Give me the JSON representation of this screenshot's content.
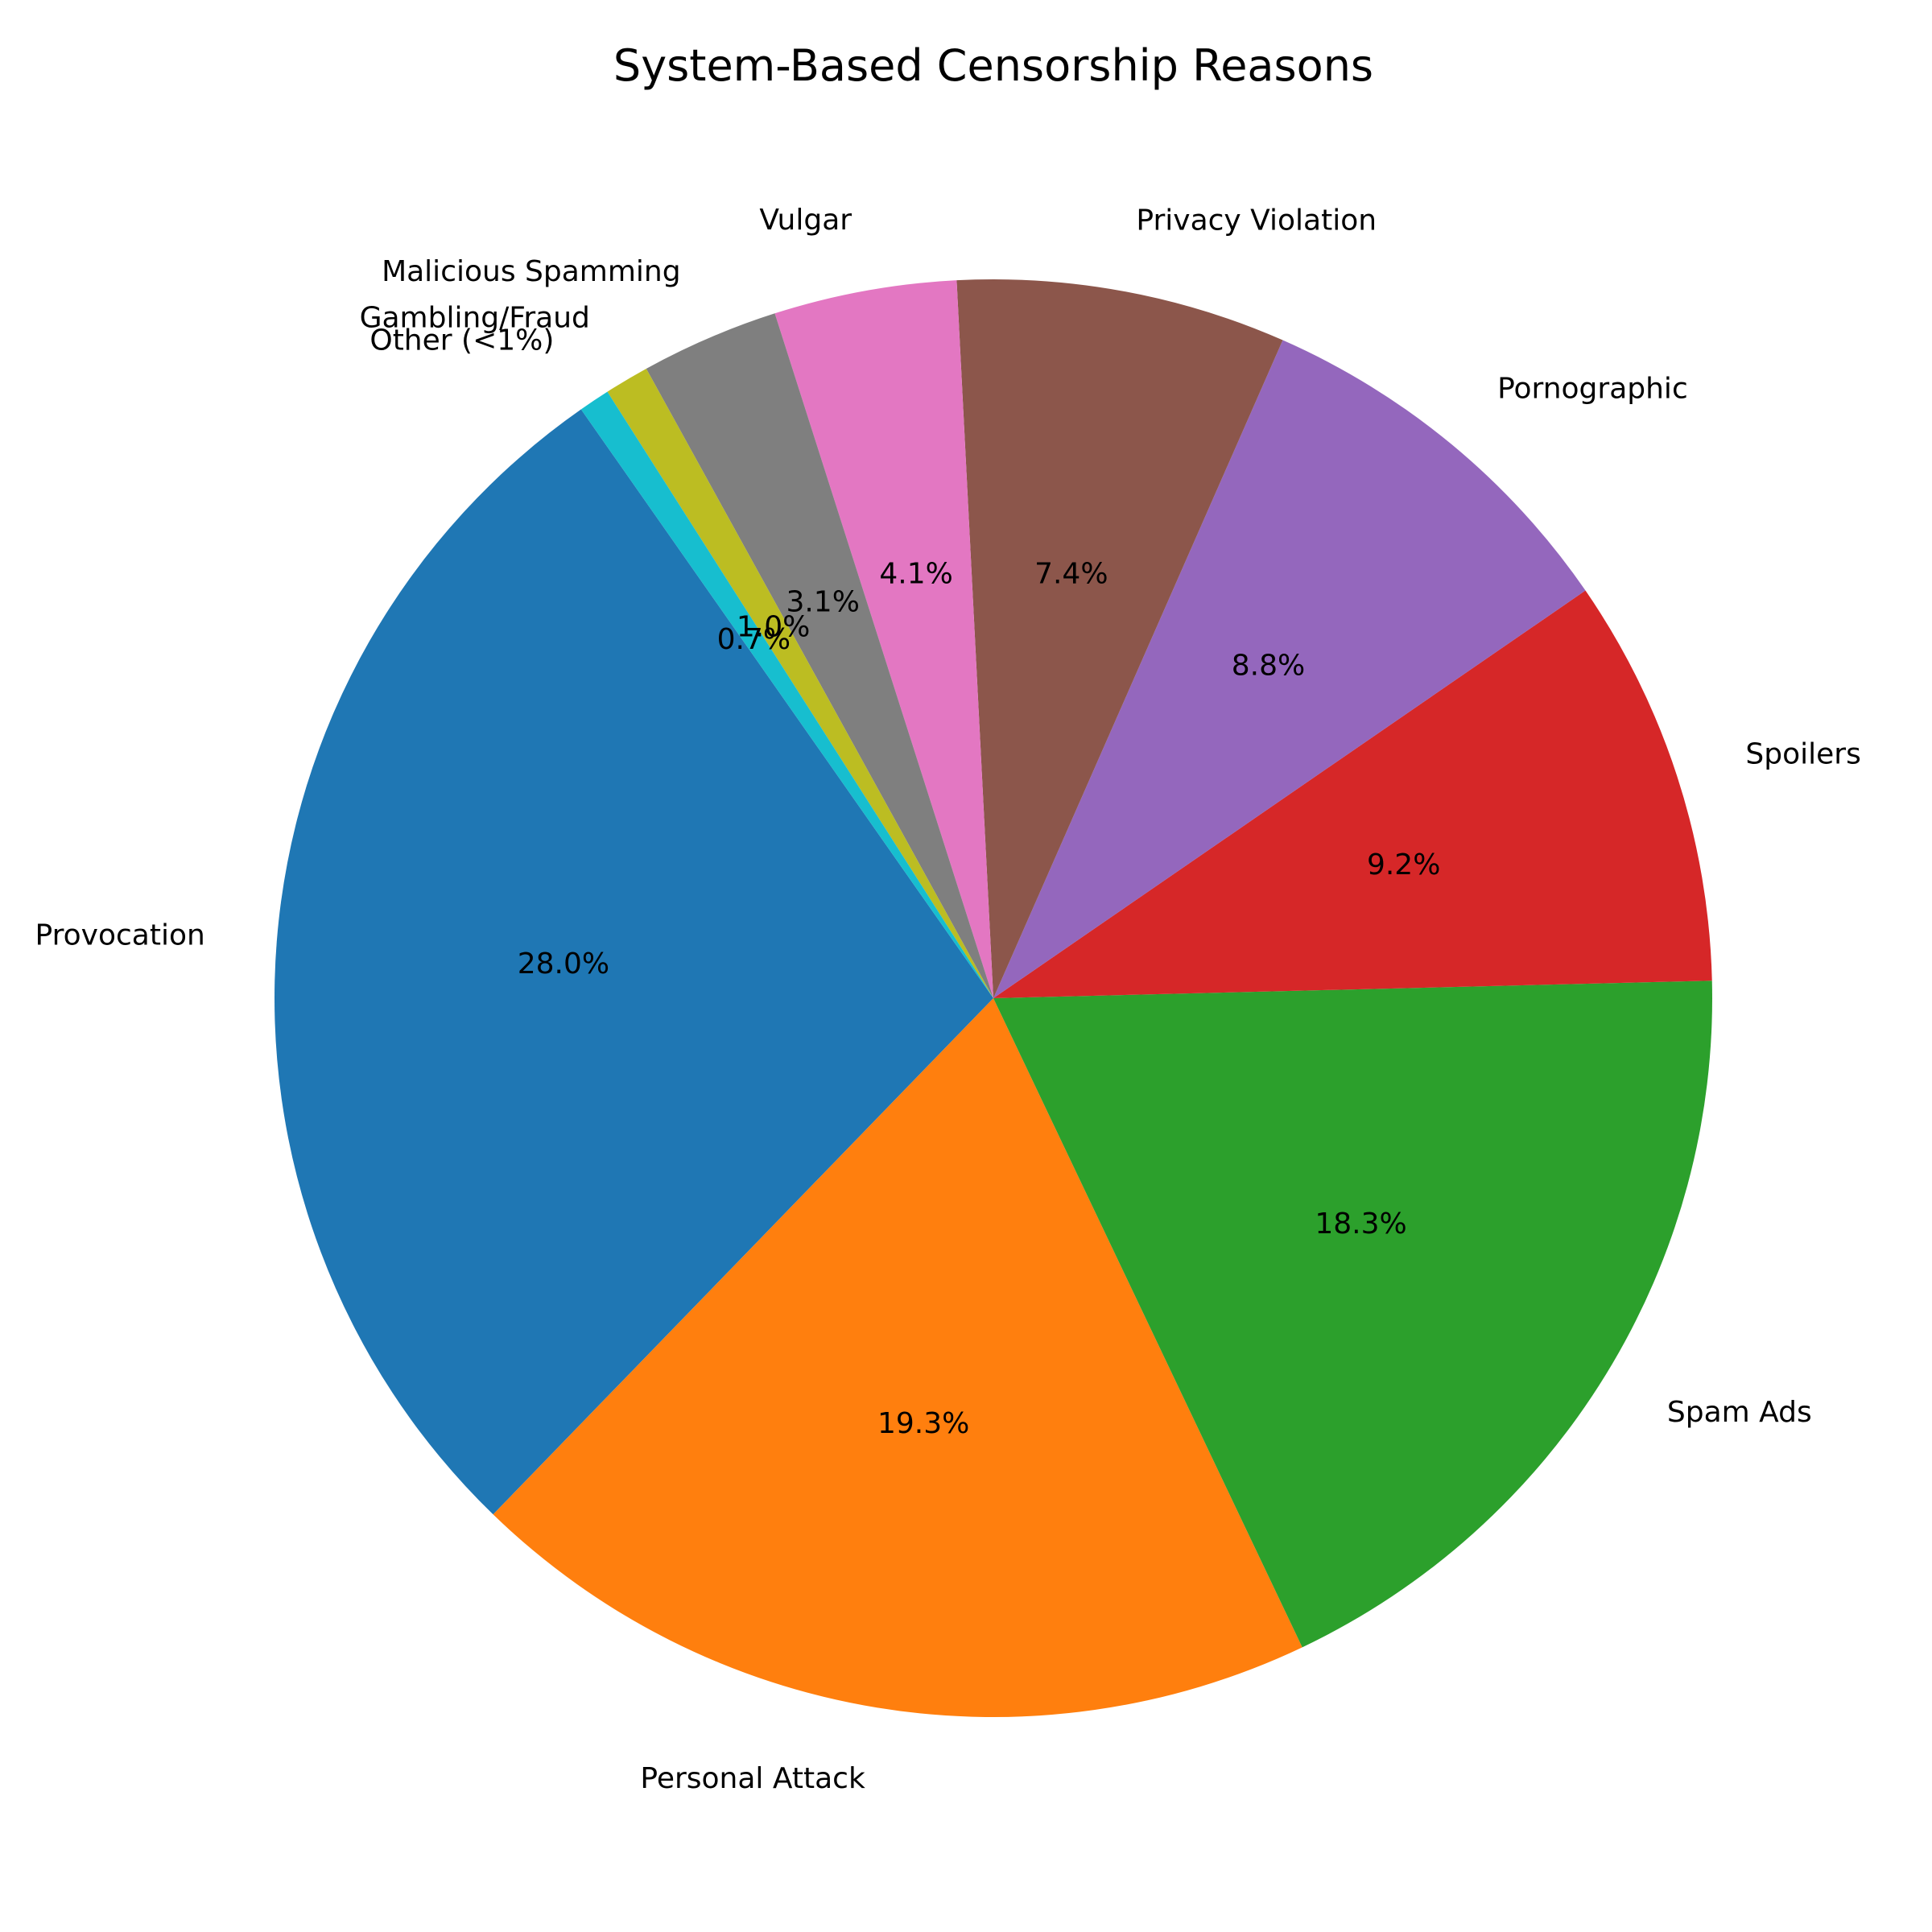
{
  "chart_data": {
    "type": "pie",
    "title": "System-Based Censorship Reasons",
    "start_angle_deg": 125,
    "direction": "counterclockwise",
    "slices": [
      {
        "label": "Provocation",
        "value": 28.0,
        "pct_label": "28.0%",
        "color": "#1f77b4"
      },
      {
        "label": "Personal Attack",
        "value": 19.3,
        "pct_label": "19.3%",
        "color": "#ff7f0e"
      },
      {
        "label": "Spam Ads",
        "value": 18.3,
        "pct_label": "18.3%",
        "color": "#2ca02c"
      },
      {
        "label": "Spoilers",
        "value": 9.2,
        "pct_label": "9.2%",
        "color": "#d62728"
      },
      {
        "label": "Pornographic",
        "value": 8.8,
        "pct_label": "8.8%",
        "color": "#9467bd"
      },
      {
        "label": "Privacy Violation",
        "value": 7.4,
        "pct_label": "7.4%",
        "color": "#8c564b"
      },
      {
        "label": "Vulgar",
        "value": 4.1,
        "pct_label": "4.1%",
        "color": "#e377c2"
      },
      {
        "label": "Malicious Spamming",
        "value": 3.1,
        "pct_label": "3.1%",
        "color": "#7f7f7f"
      },
      {
        "label": "Gambling/Fraud",
        "value": 1.0,
        "pct_label": "1.0%",
        "color": "#bcbd22"
      },
      {
        "label": "Other (<1%)",
        "value": 0.7,
        "pct_label": "0.7%",
        "color": "#17becf"
      }
    ]
  }
}
